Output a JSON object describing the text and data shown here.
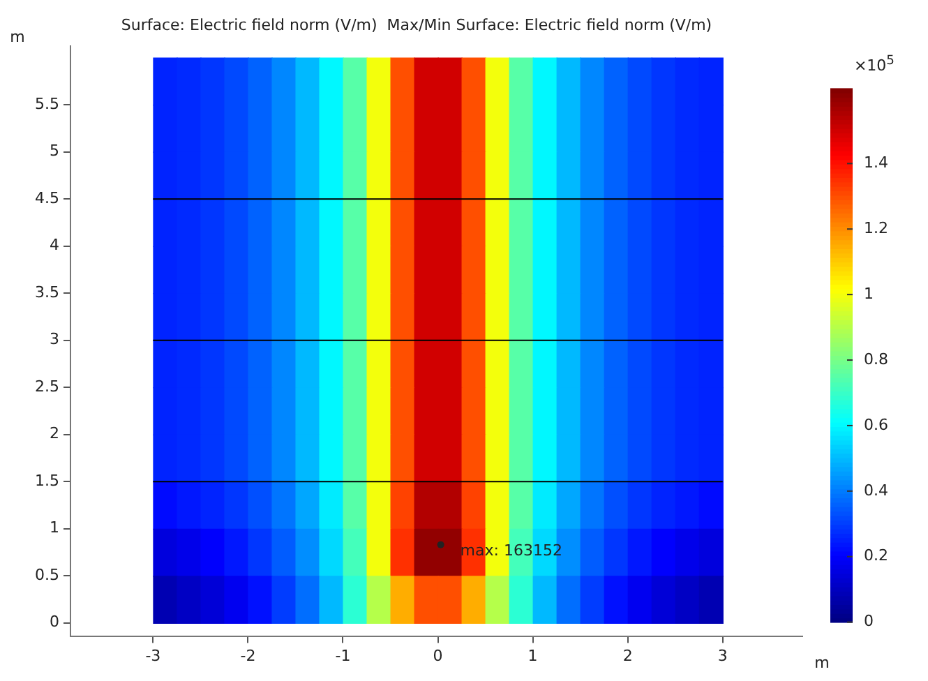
{
  "chart_data": {
    "type": "heatmap",
    "title": "Surface: Electric field norm (V/m)  Max/Min Surface: Electric field norm (V/m)",
    "xlabel": "m",
    "ylabel": "m",
    "clabel": "×10$^{5}$",
    "x": [
      -2.875,
      -2.625,
      -2.375,
      -2.125,
      -1.875,
      -1.625,
      -1.375,
      -1.125,
      -0.875,
      -0.625,
      -0.375,
      -0.125,
      0.125,
      0.375,
      0.625,
      0.875,
      1.125,
      1.375,
      1.625,
      1.875,
      2.125,
      2.375,
      2.625,
      2.875
    ],
    "y": [
      5.75,
      5.25,
      4.75,
      4.25,
      3.75,
      3.25,
      2.75,
      2.25,
      1.75,
      1.25,
      0.75,
      0.25
    ],
    "cells": [
      [
        0.26,
        0.27,
        0.29,
        0.32,
        0.36,
        0.42,
        0.5,
        0.6,
        0.75,
        1.0,
        1.3,
        1.5,
        1.5,
        1.3,
        1.0,
        0.75,
        0.6,
        0.5,
        0.42,
        0.36,
        0.32,
        0.29,
        0.27,
        0.26
      ],
      [
        0.26,
        0.27,
        0.29,
        0.32,
        0.36,
        0.42,
        0.5,
        0.6,
        0.75,
        1.0,
        1.3,
        1.5,
        1.5,
        1.3,
        1.0,
        0.75,
        0.6,
        0.5,
        0.42,
        0.36,
        0.32,
        0.29,
        0.27,
        0.26
      ],
      [
        0.26,
        0.27,
        0.29,
        0.32,
        0.36,
        0.42,
        0.5,
        0.6,
        0.75,
        1.0,
        1.3,
        1.5,
        1.5,
        1.3,
        1.0,
        0.75,
        0.6,
        0.5,
        0.42,
        0.36,
        0.32,
        0.29,
        0.27,
        0.26
      ],
      [
        0.26,
        0.27,
        0.29,
        0.32,
        0.36,
        0.42,
        0.5,
        0.6,
        0.75,
        1.0,
        1.3,
        1.5,
        1.5,
        1.3,
        1.0,
        0.75,
        0.6,
        0.5,
        0.42,
        0.36,
        0.32,
        0.29,
        0.27,
        0.26
      ],
      [
        0.26,
        0.27,
        0.29,
        0.32,
        0.36,
        0.42,
        0.5,
        0.6,
        0.75,
        1.0,
        1.3,
        1.5,
        1.5,
        1.3,
        1.0,
        0.75,
        0.6,
        0.5,
        0.42,
        0.36,
        0.32,
        0.29,
        0.27,
        0.26
      ],
      [
        0.26,
        0.27,
        0.29,
        0.32,
        0.36,
        0.42,
        0.5,
        0.6,
        0.75,
        1.0,
        1.3,
        1.5,
        1.5,
        1.3,
        1.0,
        0.75,
        0.6,
        0.5,
        0.42,
        0.36,
        0.32,
        0.29,
        0.27,
        0.26
      ],
      [
        0.26,
        0.27,
        0.29,
        0.32,
        0.36,
        0.42,
        0.5,
        0.6,
        0.75,
        1.0,
        1.3,
        1.5,
        1.5,
        1.3,
        1.0,
        0.75,
        0.6,
        0.5,
        0.42,
        0.36,
        0.32,
        0.29,
        0.27,
        0.26
      ],
      [
        0.26,
        0.27,
        0.29,
        0.32,
        0.36,
        0.42,
        0.5,
        0.6,
        0.75,
        1.0,
        1.3,
        1.5,
        1.5,
        1.3,
        1.0,
        0.75,
        0.6,
        0.5,
        0.42,
        0.36,
        0.32,
        0.29,
        0.27,
        0.26
      ],
      [
        0.26,
        0.27,
        0.29,
        0.32,
        0.36,
        0.42,
        0.5,
        0.6,
        0.75,
        1.0,
        1.3,
        1.5,
        1.5,
        1.3,
        1.0,
        0.75,
        0.6,
        0.5,
        0.42,
        0.36,
        0.32,
        0.29,
        0.27,
        0.26
      ],
      [
        0.22,
        0.24,
        0.26,
        0.29,
        0.33,
        0.39,
        0.47,
        0.58,
        0.75,
        1.0,
        1.32,
        1.55,
        1.55,
        1.32,
        1.0,
        0.75,
        0.58,
        0.47,
        0.39,
        0.33,
        0.29,
        0.26,
        0.24,
        0.22
      ],
      [
        0.15,
        0.17,
        0.2,
        0.24,
        0.29,
        0.35,
        0.43,
        0.55,
        0.72,
        1.0,
        1.35,
        1.6,
        1.6,
        1.35,
        1.0,
        0.72,
        0.55,
        0.43,
        0.35,
        0.29,
        0.24,
        0.2,
        0.17,
        0.15
      ],
      [
        0.08,
        0.11,
        0.14,
        0.18,
        0.23,
        0.3,
        0.38,
        0.5,
        0.68,
        0.9,
        1.15,
        1.3,
        1.3,
        1.15,
        0.9,
        0.68,
        0.5,
        0.38,
        0.3,
        0.23,
        0.18,
        0.14,
        0.11,
        0.08
      ]
    ],
    "clim": [
      0,
      1.63
    ],
    "cticks": [
      0,
      0.2,
      0.4,
      0.6,
      0.8,
      1,
      1.2,
      1.4
    ],
    "xlim": [
      -3.87,
      3.84
    ],
    "ylim": [
      -0.14,
      6.12
    ],
    "xticks": [
      -3,
      -2,
      -1,
      0,
      1,
      2,
      3
    ],
    "yticks": [
      0,
      0.5,
      1,
      1.5,
      2,
      2.5,
      3,
      3.5,
      4,
      4.5,
      5,
      5.5
    ],
    "ref_lines": [
      {
        "axis": "y",
        "value": 1.5,
        "color": "#000000"
      },
      {
        "axis": "y",
        "value": 3,
        "color": "#000000"
      },
      {
        "axis": "y",
        "value": 4.5,
        "color": "#000000"
      }
    ],
    "annotations": [
      {
        "text": "max: 163152",
        "x": 0.03,
        "y": 0.83
      }
    ],
    "grid": false
  }
}
